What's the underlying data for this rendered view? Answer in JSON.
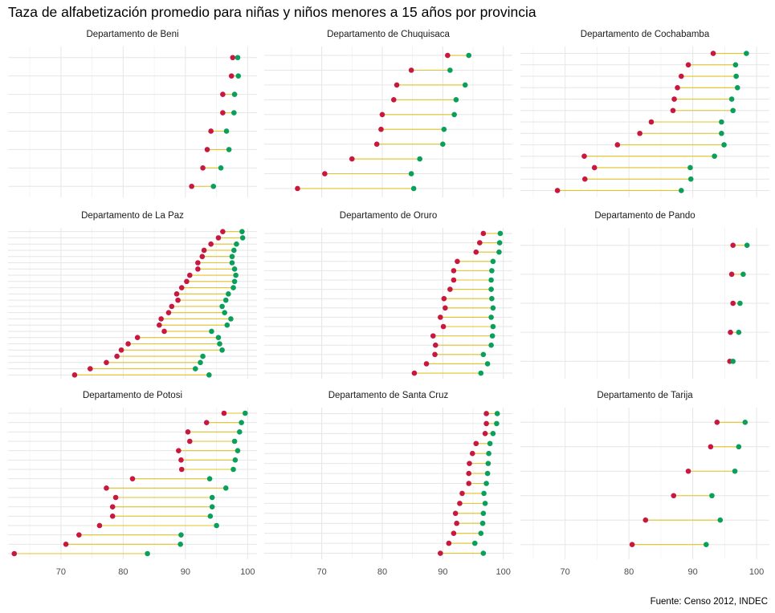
{
  "title": "Taza de alfabetización promedio para niñas y niños menores a 15 años por provincia",
  "caption": "Fuente: Censo 2012, INDEC",
  "colors": {
    "girls_point": "#c8183f",
    "boys_point": "#0aa05c",
    "segment": "#e2c32a",
    "grid": "#e6e6e6",
    "panel_title": "#1a1a1a",
    "tick_label": "#4d4d4d"
  },
  "chart_data": {
    "type": "dumbbell",
    "layout": "facet-grid 3x3, shared x axis per column",
    "grid": true,
    "legend": "none",
    "x_ticks": [
      70,
      80,
      90,
      100
    ],
    "xlim_by_column": [
      [
        61.5,
        101.5
      ],
      [
        60.5,
        101.5
      ],
      [
        63,
        102
      ]
    ],
    "panels": [
      {
        "title": "Departamento de Beni",
        "rows": [
          {
            "girls": 97.6,
            "boys": 98.4
          },
          {
            "girls": 97.4,
            "boys": 98.5
          },
          {
            "girls": 96.0,
            "boys": 97.9
          },
          {
            "girls": 96.0,
            "boys": 97.8
          },
          {
            "girls": 94.1,
            "boys": 96.6
          },
          {
            "girls": 93.5,
            "boys": 97.0
          },
          {
            "girls": 92.8,
            "boys": 95.7
          },
          {
            "girls": 91.0,
            "boys": 94.5
          }
        ]
      },
      {
        "title": "Departamento de Chuquisaca",
        "rows": [
          {
            "girls": 90.8,
            "boys": 94.3
          },
          {
            "girls": 84.8,
            "boys": 91.2
          },
          {
            "girls": 82.4,
            "boys": 93.7
          },
          {
            "girls": 81.9,
            "boys": 92.2
          },
          {
            "girls": 80.0,
            "boys": 91.9
          },
          {
            "girls": 79.8,
            "boys": 90.2
          },
          {
            "girls": 79.1,
            "boys": 90.0
          },
          {
            "girls": 75.0,
            "boys": 86.2
          },
          {
            "girls": 70.5,
            "boys": 84.8
          },
          {
            "girls": 66.0,
            "boys": 85.2
          }
        ]
      },
      {
        "title": "Departamento de Cochabamba",
        "rows": [
          {
            "girls": 93.2,
            "boys": 98.4
          },
          {
            "girls": 89.3,
            "boys": 96.7
          },
          {
            "girls": 88.2,
            "boys": 96.8
          },
          {
            "girls": 87.6,
            "boys": 97.0
          },
          {
            "girls": 87.1,
            "boys": 96.1
          },
          {
            "girls": 86.9,
            "boys": 96.3
          },
          {
            "girls": 83.5,
            "boys": 94.5
          },
          {
            "girls": 81.7,
            "boys": 94.5
          },
          {
            "girls": 78.2,
            "boys": 94.9
          },
          {
            "girls": 73.0,
            "boys": 93.4
          },
          {
            "girls": 74.6,
            "boys": 89.6
          },
          {
            "girls": 73.1,
            "boys": 89.7
          },
          {
            "girls": 68.8,
            "boys": 88.2
          }
        ]
      },
      {
        "title": "Departamento de La Paz",
        "rows": [
          {
            "girls": 96.0,
            "boys": 99.1
          },
          {
            "girls": 95.3,
            "boys": 99.2
          },
          {
            "girls": 94.1,
            "boys": 98.2
          },
          {
            "girls": 93.0,
            "boys": 97.8
          },
          {
            "girls": 92.7,
            "boys": 97.5
          },
          {
            "girls": 92.0,
            "boys": 97.5
          },
          {
            "girls": 92.0,
            "boys": 97.9
          },
          {
            "girls": 90.7,
            "boys": 98.1
          },
          {
            "girls": 90.2,
            "boys": 97.9
          },
          {
            "girls": 89.4,
            "boys": 97.7
          },
          {
            "girls": 88.6,
            "boys": 96.9
          },
          {
            "girls": 88.8,
            "boys": 96.5
          },
          {
            "girls": 87.8,
            "boys": 95.9
          },
          {
            "girls": 87.3,
            "boys": 96.3
          },
          {
            "girls": 86.1,
            "boys": 97.3
          },
          {
            "girls": 85.8,
            "boys": 96.7
          },
          {
            "girls": 86.6,
            "boys": 94.2
          },
          {
            "girls": 82.3,
            "boys": 95.3
          },
          {
            "girls": 80.8,
            "boys": 95.5
          },
          {
            "girls": 79.7,
            "boys": 95.9
          },
          {
            "girls": 79.0,
            "boys": 92.8
          },
          {
            "girls": 77.3,
            "boys": 92.4
          },
          {
            "girls": 74.7,
            "boys": 91.6
          },
          {
            "girls": 72.2,
            "boys": 93.8
          }
        ]
      },
      {
        "title": "Departamento de Oruro",
        "rows": [
          {
            "girls": 96.7,
            "boys": 99.5
          },
          {
            "girls": 96.1,
            "boys": 99.4
          },
          {
            "girls": 95.5,
            "boys": 99.3
          },
          {
            "girls": 92.4,
            "boys": 98.3
          },
          {
            "girls": 91.8,
            "boys": 98.1
          },
          {
            "girls": 91.8,
            "boys": 98.0
          },
          {
            "girls": 91.2,
            "boys": 98.0
          },
          {
            "girls": 90.2,
            "boys": 98.1
          },
          {
            "girls": 90.4,
            "boys": 98.3
          },
          {
            "girls": 89.6,
            "boys": 98.0
          },
          {
            "girls": 90.1,
            "boys": 98.3
          },
          {
            "girls": 88.4,
            "boys": 98.2
          },
          {
            "girls": 88.8,
            "boys": 98.0
          },
          {
            "girls": 88.7,
            "boys": 96.7
          },
          {
            "girls": 87.3,
            "boys": 97.4
          },
          {
            "girls": 85.3,
            "boys": 96.3
          }
        ]
      },
      {
        "title": "Departamento de Pando",
        "rows": [
          {
            "girls": 96.3,
            "boys": 98.5
          },
          {
            "girls": 96.1,
            "boys": 97.9
          },
          {
            "girls": 96.3,
            "boys": 97.4
          },
          {
            "girls": 95.9,
            "boys": 97.2
          },
          {
            "girls": 95.8,
            "boys": 96.3
          }
        ]
      },
      {
        "title": "Departamento de Potosi",
        "rows": [
          {
            "girls": 96.2,
            "boys": 99.6
          },
          {
            "girls": 93.4,
            "boys": 99.0
          },
          {
            "girls": 90.4,
            "boys": 98.7
          },
          {
            "girls": 90.7,
            "boys": 97.9
          },
          {
            "girls": 88.9,
            "boys": 98.4
          },
          {
            "girls": 89.3,
            "boys": 98.0
          },
          {
            "girls": 89.4,
            "boys": 97.7
          },
          {
            "girls": 81.5,
            "boys": 93.9
          },
          {
            "girls": 77.3,
            "boys": 96.5
          },
          {
            "girls": 78.8,
            "boys": 94.3
          },
          {
            "girls": 78.3,
            "boys": 94.3
          },
          {
            "girls": 78.3,
            "boys": 94.0
          },
          {
            "girls": 76.2,
            "boys": 95.0
          },
          {
            "girls": 72.9,
            "boys": 89.3
          },
          {
            "girls": 70.8,
            "boys": 89.2
          },
          {
            "girls": 62.5,
            "boys": 83.9
          }
        ]
      },
      {
        "title": "Departamento de Santa Cruz",
        "rows": [
          {
            "girls": 97.2,
            "boys": 99.0
          },
          {
            "girls": 97.2,
            "boys": 98.9
          },
          {
            "girls": 97.0,
            "boys": 98.3
          },
          {
            "girls": 95.5,
            "boys": 97.8
          },
          {
            "girls": 94.9,
            "boys": 97.6
          },
          {
            "girls": 94.4,
            "boys": 97.5
          },
          {
            "girls": 94.3,
            "boys": 97.4
          },
          {
            "girls": 94.3,
            "boys": 97.2
          },
          {
            "girls": 93.2,
            "boys": 96.8
          },
          {
            "girls": 92.8,
            "boys": 97.0
          },
          {
            "girls": 92.1,
            "boys": 96.7
          },
          {
            "girls": 92.3,
            "boys": 96.6
          },
          {
            "girls": 91.8,
            "boys": 96.3
          },
          {
            "girls": 91.0,
            "boys": 95.3
          },
          {
            "girls": 89.6,
            "boys": 96.7
          }
        ]
      },
      {
        "title": "Departamento de Tarija",
        "rows": [
          {
            "girls": 93.8,
            "boys": 98.2
          },
          {
            "girls": 92.8,
            "boys": 97.2
          },
          {
            "girls": 89.3,
            "boys": 96.6
          },
          {
            "girls": 87.0,
            "boys": 93.0
          },
          {
            "girls": 82.6,
            "boys": 94.3
          },
          {
            "girls": 80.5,
            "boys": 92.1
          }
        ]
      }
    ]
  }
}
